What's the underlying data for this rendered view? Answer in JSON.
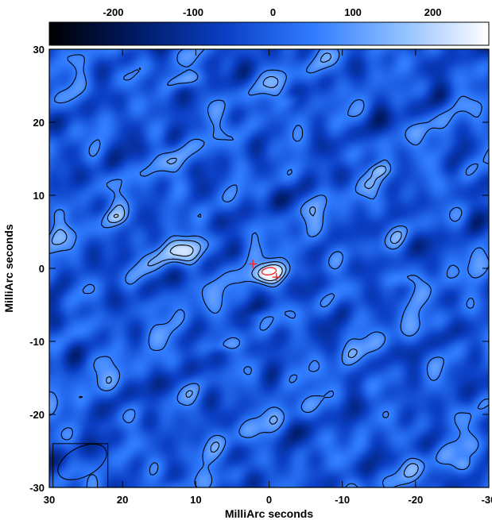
{
  "chart_data": {
    "type": "heatmap",
    "title": "",
    "xlabel": "MilliArc seconds",
    "ylabel": "MilliArc seconds",
    "xlim": [
      30,
      -30
    ],
    "ylim": [
      -30,
      30
    ],
    "x_ticks": [
      30,
      20,
      10,
      0,
      -10,
      -20,
      -30
    ],
    "x_tick_labels": [
      "30",
      "20",
      "10",
      "0",
      "-10",
      "-20",
      "-30"
    ],
    "y_ticks": [
      30,
      20,
      10,
      0,
      -10,
      -20,
      -30
    ],
    "y_tick_labels": [
      "30",
      "20",
      "10",
      "0",
      "-10",
      "-20",
      "-30"
    ],
    "colorbar": {
      "range": [
        -280,
        270
      ],
      "ticks": [
        -200,
        -100,
        0,
        100,
        200
      ],
      "tick_labels": [
        "-200",
        "-100",
        "0",
        "100",
        "200"
      ],
      "colormap": [
        "#000000",
        "#001a66",
        "#0b3fc4",
        "#2f7bff",
        "#8fbfff",
        "#ffffff"
      ],
      "placement": "top"
    },
    "grid": false,
    "background_level": 0,
    "sources": [
      {
        "x": 0,
        "y": -0.6,
        "peak": 265,
        "sx": 1.9,
        "sy": 0.9,
        "angle": -12
      },
      {
        "x": 12.5,
        "y": 2.4,
        "peak": 240,
        "sx": 2.1,
        "sy": 1.4,
        "angle": -15
      },
      {
        "x": 11.5,
        "y": 25.8,
        "peak": 160,
        "sx": 1.5,
        "sy": 0.7,
        "angle": -15
      },
      {
        "x": -26.5,
        "y": -27.0,
        "peak": 130,
        "sx": 1.0,
        "sy": 0.8,
        "angle": 0
      },
      {
        "x": -18.5,
        "y": -1.4,
        "peak": 95,
        "sx": 1.6,
        "sy": 0.8,
        "angle": -5
      },
      {
        "x": 28.5,
        "y": 7.5,
        "peak": 90,
        "sx": 1.4,
        "sy": 0.9,
        "angle": -30
      },
      {
        "x": -15,
        "y": 13.5,
        "peak": 80,
        "sx": 1.1,
        "sy": 0.6,
        "angle": 0
      },
      {
        "x": 6,
        "y": -10.5,
        "peak": 85,
        "sx": 1.5,
        "sy": 0.6,
        "angle": -10
      },
      {
        "x": -3,
        "y": 23,
        "peak": 75,
        "sx": 1.2,
        "sy": 0.6,
        "angle": -25
      },
      {
        "x": 21,
        "y": 7,
        "peak": 70,
        "sx": 1.0,
        "sy": 0.6,
        "angle": 0
      },
      {
        "x": 2,
        "y": -6.5,
        "peak": 70,
        "sx": 1.3,
        "sy": 0.6,
        "angle": -10
      }
    ],
    "contour_levels": [
      60,
      120,
      190
    ],
    "markers": [
      {
        "x": 2.2,
        "y": 0.6,
        "symbol": "cross"
      },
      {
        "x": -1,
        "y": -1.2,
        "symbol": "cross"
      }
    ],
    "beam": {
      "x": 25.5,
      "y": -26.5,
      "major": 3.6,
      "minor": 2.0,
      "angle_deg": -28,
      "box": [
        22,
        29.5,
        -24,
        -30
      ]
    }
  }
}
